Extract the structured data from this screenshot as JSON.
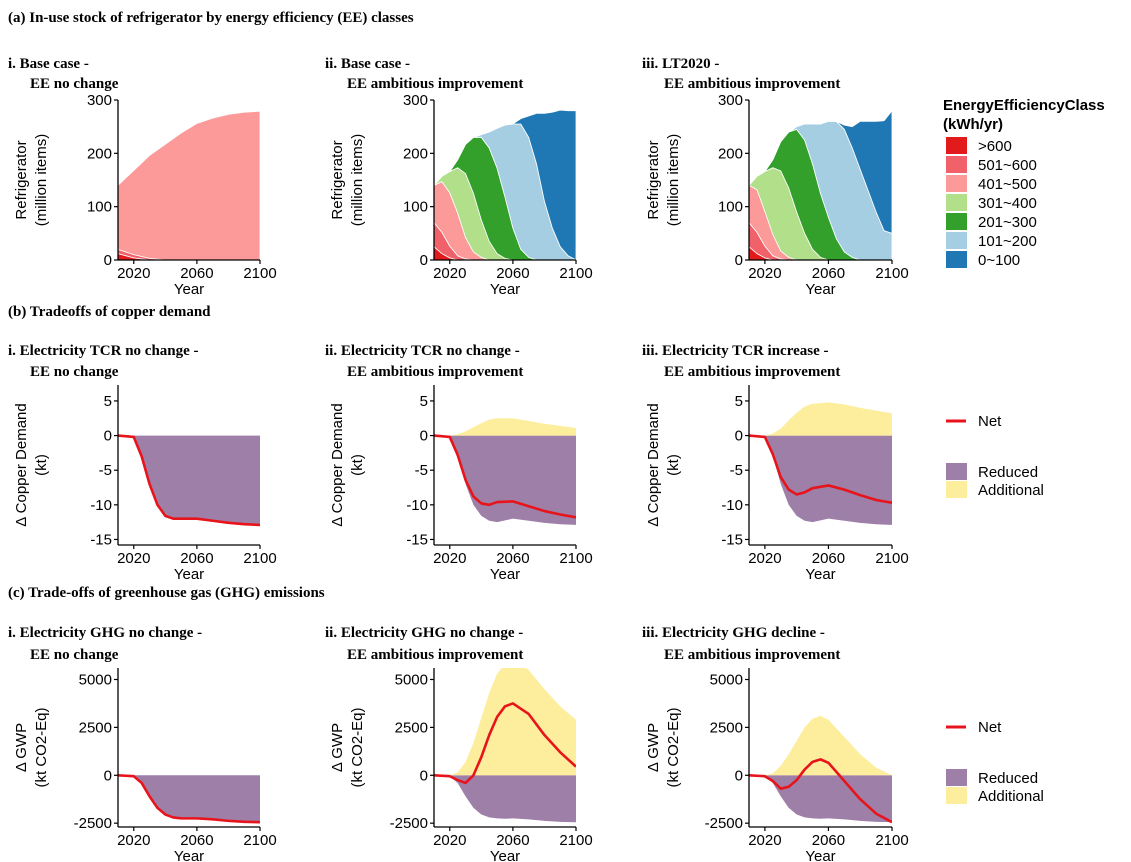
{
  "figure": {
    "section_a_title": "(a) In-use stock of refrigerator by energy efficiency (EE) classes",
    "section_b_title": "(b) Tradeoffs of copper demand",
    "section_c_title": "(c) Trade-offs of greenhouse gas (GHG) emissions"
  },
  "legend_ee": {
    "title_line1": "EnergyEfficiencyClass",
    "title_line2": "(kWh/yr)",
    "items": [
      {
        "label": ">600",
        "color": "#e31a1c"
      },
      {
        "label": "501~600",
        "color": "#f0616a"
      },
      {
        "label": "401~500",
        "color": "#fb9a99"
      },
      {
        "label": "301~400",
        "color": "#b2df8a"
      },
      {
        "label": "201~300",
        "color": "#33a02c"
      },
      {
        "label": "101~200",
        "color": "#a6cee3"
      },
      {
        "label": "0~100",
        "color": "#1f78b4"
      }
    ]
  },
  "legend_b": {
    "net": "Net",
    "reduced": "Reduced",
    "additional": "Additional",
    "colors": {
      "net": "#e8141b",
      "reduced": "#9e7fa8",
      "additional": "#fcee9c"
    }
  },
  "legend_c": {
    "net": "Net",
    "reduced": "Reduced",
    "additional": "Additional",
    "colors": {
      "net": "#e8141b",
      "reduced": "#9e7fa8",
      "additional": "#fcee9c"
    }
  },
  "chart_data": [
    {
      "type": "area",
      "title_line1": "i. Base case -",
      "title_line2": "EE no change",
      "xlabel": "Year",
      "ylabel_line1": "Refrigerator",
      "ylabel_line2": "(million items)",
      "xlim": [
        2010,
        2100
      ],
      "ylim": [
        0,
        300
      ],
      "xticks": [
        2020,
        2060,
        2100
      ],
      "yticks": [
        0,
        100,
        200,
        300
      ],
      "x": [
        2010,
        2020,
        2030,
        2040,
        2050,
        2060,
        2070,
        2080,
        2090,
        2100
      ],
      "series": [
        {
          "name": ">600",
          "values": [
            12,
            4,
            0,
            0,
            0,
            0,
            0,
            0,
            0,
            0
          ]
        },
        {
          "name": "501~600",
          "values": [
            8,
            6,
            3,
            0,
            0,
            0,
            0,
            0,
            0,
            0
          ]
        },
        {
          "name": "401~500",
          "values": [
            120,
            158,
            193,
            217,
            238,
            256,
            266,
            273,
            277,
            279
          ]
        }
      ]
    },
    {
      "type": "area",
      "title_line1": "ii. Base case -",
      "title_line2": "EE ambitious improvement",
      "xlabel": "Year",
      "ylabel_line1": "Refrigerator",
      "ylabel_line2": "(million items)",
      "xlim": [
        2010,
        2100
      ],
      "ylim": [
        0,
        300
      ],
      "xticks": [
        2020,
        2060,
        2100
      ],
      "yticks": [
        0,
        100,
        200,
        300
      ],
      "x": [
        2010,
        2015,
        2020,
        2025,
        2030,
        2035,
        2040,
        2045,
        2050,
        2055,
        2060,
        2065,
        2070,
        2075,
        2080,
        2085,
        2090,
        2095,
        2100
      ],
      "series": [
        {
          "name": ">600",
          "values": [
            25,
            12,
            4,
            0,
            0,
            0,
            0,
            0,
            0,
            0,
            0,
            0,
            0,
            0,
            0,
            0,
            0,
            0,
            0
          ]
        },
        {
          "name": "501~600",
          "values": [
            45,
            40,
            22,
            8,
            2,
            0,
            0,
            0,
            0,
            0,
            0,
            0,
            0,
            0,
            0,
            0,
            0,
            0,
            0
          ]
        },
        {
          "name": "401~500",
          "values": [
            70,
            95,
            100,
            80,
            40,
            15,
            5,
            0,
            0,
            0,
            0,
            0,
            0,
            0,
            0,
            0,
            0,
            0,
            0
          ]
        },
        {
          "name": "301~400",
          "values": [
            0,
            10,
            40,
            85,
            120,
            110,
            70,
            35,
            12,
            3,
            0,
            0,
            0,
            0,
            0,
            0,
            0,
            0,
            0
          ]
        },
        {
          "name": "201~300",
          "values": [
            0,
            0,
            0,
            15,
            55,
            105,
            155,
            175,
            160,
            115,
            60,
            20,
            5,
            0,
            0,
            0,
            0,
            0,
            0
          ]
        },
        {
          "name": "101~200",
          "values": [
            0,
            0,
            0,
            0,
            0,
            0,
            5,
            30,
            75,
            135,
            195,
            235,
            225,
            180,
            110,
            60,
            25,
            8,
            0
          ]
        },
        {
          "name": "0~100",
          "values": [
            0,
            0,
            0,
            0,
            0,
            0,
            0,
            0,
            0,
            0,
            0,
            10,
            40,
            95,
            165,
            217,
            256,
            272,
            280
          ]
        }
      ]
    },
    {
      "type": "area",
      "title_line1": "iii. LT2020 -",
      "title_line2": "EE ambitious improvement",
      "xlabel": "Year",
      "ylabel_line1": "Refrigerator",
      "ylabel_line2": "(million items)",
      "xlim": [
        2010,
        2100
      ],
      "ylim": [
        0,
        300
      ],
      "xticks": [
        2020,
        2060,
        2100
      ],
      "yticks": [
        0,
        100,
        200,
        300
      ],
      "x": [
        2010,
        2015,
        2020,
        2025,
        2030,
        2035,
        2040,
        2045,
        2050,
        2055,
        2060,
        2065,
        2070,
        2075,
        2080,
        2085,
        2090,
        2095,
        2100
      ],
      "series": [
        {
          "name": ">600",
          "values": [
            25,
            12,
            4,
            0,
            0,
            0,
            0,
            0,
            0,
            0,
            0,
            0,
            0,
            0,
            0,
            0,
            0,
            0,
            0
          ]
        },
        {
          "name": "501~600",
          "values": [
            45,
            40,
            22,
            8,
            2,
            0,
            0,
            0,
            0,
            0,
            0,
            0,
            0,
            0,
            0,
            0,
            0,
            0,
            0
          ]
        },
        {
          "name": "401~500",
          "values": [
            70,
            80,
            65,
            40,
            15,
            5,
            0,
            0,
            0,
            0,
            0,
            0,
            0,
            0,
            0,
            0,
            0,
            0,
            0
          ]
        },
        {
          "name": "301~400",
          "values": [
            0,
            25,
            75,
            125,
            150,
            130,
            90,
            50,
            20,
            5,
            0,
            0,
            0,
            0,
            0,
            0,
            0,
            0,
            0
          ]
        },
        {
          "name": "201~300",
          "values": [
            0,
            0,
            0,
            15,
            55,
            105,
            155,
            175,
            160,
            120,
            80,
            40,
            15,
            5,
            0,
            0,
            0,
            0,
            0
          ]
        },
        {
          "name": "101~200",
          "values": [
            0,
            0,
            0,
            0,
            0,
            0,
            5,
            30,
            75,
            130,
            180,
            220,
            230,
            205,
            170,
            130,
            90,
            55,
            50
          ]
        },
        {
          "name": "0~100",
          "values": [
            0,
            0,
            0,
            0,
            0,
            0,
            0,
            0,
            0,
            0,
            0,
            0,
            8,
            40,
            90,
            130,
            170,
            206,
            230
          ]
        }
      ]
    },
    {
      "type": "area",
      "title_line1": "i. Electricity TCR no change -",
      "title_line2": "EE no change",
      "xlabel": "Year",
      "ylabel_line1": "Δ Copper Demand",
      "ylabel_line2": "(kt)",
      "xlim": [
        2010,
        2100
      ],
      "ylim": [
        -15.8,
        7.3
      ],
      "xticks": [
        2020,
        2060,
        2100
      ],
      "yticks": [
        -15,
        -10,
        -5,
        0,
        5
      ],
      "x": [
        2010,
        2020,
        2025,
        2030,
        2035,
        2040,
        2045,
        2050,
        2060,
        2070,
        2080,
        2090,
        2100
      ],
      "series": [
        {
          "name": "Reduced",
          "values": [
            0,
            -0.2,
            -3,
            -7,
            -10,
            -11.6,
            -12,
            -12,
            -12,
            -12.3,
            -12.6,
            -12.8,
            -12.9
          ]
        },
        {
          "name": "Additional",
          "values": [
            0,
            0,
            0,
            0,
            0,
            0,
            0,
            0,
            0,
            0,
            0,
            0,
            0
          ]
        },
        {
          "name": "Net",
          "values": [
            0,
            -0.2,
            -3,
            -7,
            -10,
            -11.6,
            -12,
            -12,
            -12,
            -12.3,
            -12.6,
            -12.8,
            -12.9
          ]
        }
      ]
    },
    {
      "type": "area",
      "title_line1": "ii. Electricity TCR no change -",
      "title_line2": "EE ambitious improvement",
      "xlabel": "Year",
      "ylabel_line1": "Δ Copper Demand",
      "ylabel_line2": "(kt)",
      "xlim": [
        2010,
        2100
      ],
      "ylim": [
        -15.8,
        7.3
      ],
      "xticks": [
        2020,
        2060,
        2100
      ],
      "yticks": [
        -15,
        -10,
        -5,
        0,
        5
      ],
      "x": [
        2010,
        2020,
        2025,
        2030,
        2035,
        2040,
        2045,
        2050,
        2060,
        2070,
        2080,
        2090,
        2100
      ],
      "series": [
        {
          "name": "Reduced",
          "values": [
            0,
            -0.2,
            -3,
            -7,
            -10,
            -11.6,
            -12.3,
            -12.5,
            -12,
            -12.3,
            -12.6,
            -12.8,
            -12.9
          ]
        },
        {
          "name": "Additional",
          "values": [
            0,
            0,
            0.2,
            0.6,
            1.2,
            1.8,
            2.3,
            2.5,
            2.5,
            2.1,
            1.7,
            1.4,
            1.1
          ]
        },
        {
          "name": "Net",
          "values": [
            0,
            -0.2,
            -2.8,
            -6.4,
            -8.8,
            -9.8,
            -10,
            -9.6,
            -9.5,
            -10.2,
            -10.9,
            -11.4,
            -11.8
          ]
        }
      ]
    },
    {
      "type": "area",
      "title_line1": "iii. Electricity TCR increase -",
      "title_line2": "EE ambitious improvement",
      "xlabel": "Year",
      "ylabel_line1": "Δ Copper Demand",
      "ylabel_line2": "(kt)",
      "xlim": [
        2010,
        2100
      ],
      "ylim": [
        -15.8,
        7.3
      ],
      "xticks": [
        2020,
        2060,
        2100
      ],
      "yticks": [
        -15,
        -10,
        -5,
        0,
        5
      ],
      "x": [
        2010,
        2020,
        2025,
        2030,
        2035,
        2040,
        2045,
        2050,
        2060,
        2070,
        2080,
        2090,
        2100
      ],
      "series": [
        {
          "name": "Reduced",
          "values": [
            0,
            -0.2,
            -3,
            -7,
            -10,
            -11.6,
            -12.3,
            -12.5,
            -12,
            -12.3,
            -12.6,
            -12.8,
            -12.9
          ]
        },
        {
          "name": "Additional",
          "values": [
            0,
            0,
            0.3,
            1.0,
            2.2,
            3.3,
            4.2,
            4.6,
            4.8,
            4.5,
            4.0,
            3.6,
            3.2
          ]
        },
        {
          "name": "Net",
          "values": [
            0,
            -0.2,
            -2.7,
            -6,
            -7.8,
            -8.5,
            -8.2,
            -7.6,
            -7.2,
            -7.8,
            -8.6,
            -9.3,
            -9.7
          ]
        }
      ]
    },
    {
      "type": "area",
      "title_line1": "i. Electricity GHG no change -",
      "title_line2": "EE no change",
      "xlabel": "Year",
      "ylabel_line1": "Δ GWP",
      "ylabel_line2": "(kt CO2-Eq)",
      "xlim": [
        2010,
        2100
      ],
      "ylim": [
        -2700,
        5600
      ],
      "xticks": [
        2020,
        2060,
        2100
      ],
      "yticks": [
        -2500,
        0,
        2500,
        5000
      ],
      "x": [
        2010,
        2020,
        2025,
        2030,
        2035,
        2040,
        2045,
        2050,
        2060,
        2070,
        2080,
        2090,
        2100
      ],
      "series": [
        {
          "name": "Reduced",
          "values": [
            0,
            -50,
            -400,
            -1100,
            -1700,
            -2050,
            -2200,
            -2250,
            -2250,
            -2300,
            -2380,
            -2430,
            -2450
          ]
        },
        {
          "name": "Additional",
          "values": [
            0,
            0,
            0,
            0,
            0,
            0,
            0,
            0,
            0,
            0,
            0,
            0,
            0
          ]
        },
        {
          "name": "Net",
          "values": [
            0,
            -50,
            -400,
            -1100,
            -1700,
            -2050,
            -2200,
            -2250,
            -2250,
            -2300,
            -2380,
            -2430,
            -2450
          ]
        }
      ]
    },
    {
      "type": "area",
      "title_line1": "ii. Electricity GHG no change -",
      "title_line2": "EE ambitious improvement",
      "xlabel": "Year",
      "ylabel_line1": "Δ GWP",
      "ylabel_line2": "(kt CO2-Eq)",
      "xlim": [
        2010,
        2100
      ],
      "ylim": [
        -2700,
        5600
      ],
      "xticks": [
        2020,
        2060,
        2100
      ],
      "yticks": [
        -2500,
        0,
        2500,
        5000
      ],
      "x": [
        2010,
        2020,
        2025,
        2030,
        2035,
        2040,
        2045,
        2050,
        2055,
        2060,
        2070,
        2080,
        2090,
        2100
      ],
      "series": [
        {
          "name": "Reduced",
          "values": [
            0,
            -50,
            -400,
            -1100,
            -1700,
            -2050,
            -2200,
            -2250,
            -2270,
            -2250,
            -2300,
            -2380,
            -2430,
            -2450
          ]
        },
        {
          "name": "Additional",
          "values": [
            0,
            0,
            150,
            700,
            1700,
            3000,
            4300,
            5300,
            5800,
            6000,
            5500,
            4500,
            3600,
            2900
          ]
        },
        {
          "name": "Net",
          "values": [
            0,
            -50,
            -250,
            -400,
            0,
            950,
            2100,
            3050,
            3600,
            3750,
            3200,
            2100,
            1200,
            450
          ]
        }
      ]
    },
    {
      "type": "area",
      "title_line1": "iii. Electricity GHG decline -",
      "title_line2": "EE ambitious improvement",
      "xlabel": "Year",
      "ylabel_line1": "Δ GWP",
      "ylabel_line2": "(kt CO2-Eq)",
      "xlim": [
        2010,
        2100
      ],
      "ylim": [
        -2700,
        5600
      ],
      "xticks": [
        2020,
        2060,
        2100
      ],
      "yticks": [
        -2500,
        0,
        2500,
        5000
      ],
      "x": [
        2010,
        2020,
        2025,
        2030,
        2035,
        2040,
        2045,
        2050,
        2055,
        2060,
        2070,
        2080,
        2090,
        2100
      ],
      "series": [
        {
          "name": "Reduced",
          "values": [
            0,
            -50,
            -400,
            -1100,
            -1700,
            -2050,
            -2200,
            -2250,
            -2270,
            -2250,
            -2300,
            -2380,
            -2430,
            -2450
          ]
        },
        {
          "name": "Additional",
          "values": [
            0,
            0,
            100,
            500,
            1100,
            1800,
            2500,
            2950,
            3100,
            2900,
            2000,
            1100,
            400,
            0
          ]
        },
        {
          "name": "Net",
          "values": [
            0,
            -50,
            -300,
            -700,
            -600,
            -250,
            300,
            700,
            830,
            650,
            -300,
            -1250,
            -2000,
            -2450
          ]
        }
      ]
    }
  ]
}
